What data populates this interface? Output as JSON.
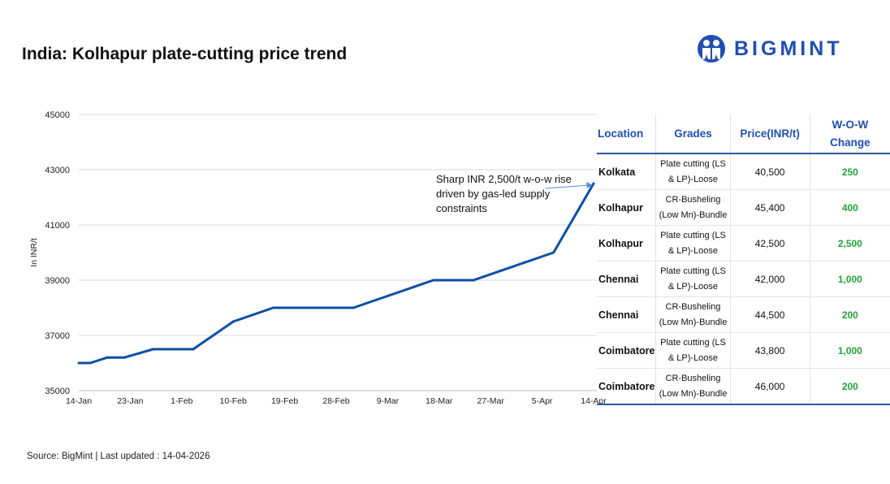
{
  "title": "India: Kolhapur plate-cutting price trend",
  "logo": {
    "text": "BIGMINT",
    "color": "#1f4fb0"
  },
  "annotation": "Sharp INR 2,500/t w-o-w rise driven by gas-led supply constraints",
  "source": "Source: BigMint | Last updated : 14-04-2026",
  "chart_data": {
    "type": "line",
    "title": "",
    "xlabel": "",
    "ylabel": "In INR/t",
    "ylim": [
      35000,
      45000
    ],
    "yticks": [
      "35000",
      "37000",
      "39000",
      "41000",
      "43000",
      "45000"
    ],
    "xticks": [
      "14-Jan",
      "23-Jan",
      "1-Feb",
      "10-Feb",
      "19-Feb",
      "28-Feb",
      "9-Mar",
      "18-Mar",
      "27-Mar",
      "5-Apr",
      "14-Apr"
    ],
    "grid": true,
    "line_color": "#0d4ea6",
    "x": [
      "14-Jan",
      "16-Jan",
      "19-Jan",
      "22-Jan",
      "27-Jan",
      "3-Feb",
      "10-Feb",
      "17-Feb",
      "3-Mar",
      "17-Mar",
      "24-Mar",
      "7-Apr",
      "14-Apr"
    ],
    "values": [
      36000,
      36000,
      36200,
      36200,
      36500,
      36500,
      37500,
      38000,
      38000,
      39000,
      39000,
      40000,
      42500
    ]
  },
  "table": {
    "headers": [
      "Location",
      "Grades",
      "Price(INR/t)",
      "W-O-W Change"
    ],
    "rows": [
      [
        "Kolkata",
        "Plate cutting (LS & LP)-Loose",
        "40,500",
        "250"
      ],
      [
        "Kolhapur",
        "CR-Busheling (Low Mn)-Bundle",
        "45,400",
        "400"
      ],
      [
        "Kolhapur",
        "Plate cutting (LS & LP)-Loose",
        "42,500",
        "2,500"
      ],
      [
        "Chennai",
        "Plate cutting (LS & LP)-Loose",
        "42,000",
        "1,000"
      ],
      [
        "Chennai",
        "CR-Busheling (Low Mn)-Bundle",
        "44,500",
        "200"
      ],
      [
        "Coimbatore",
        "Plate cutting (LS & LP)-Loose",
        "43,800",
        "1,000"
      ],
      [
        "Coimbatore",
        "CR-Busheling (Low Mn)-Bundle",
        "46,000",
        "200"
      ]
    ]
  }
}
